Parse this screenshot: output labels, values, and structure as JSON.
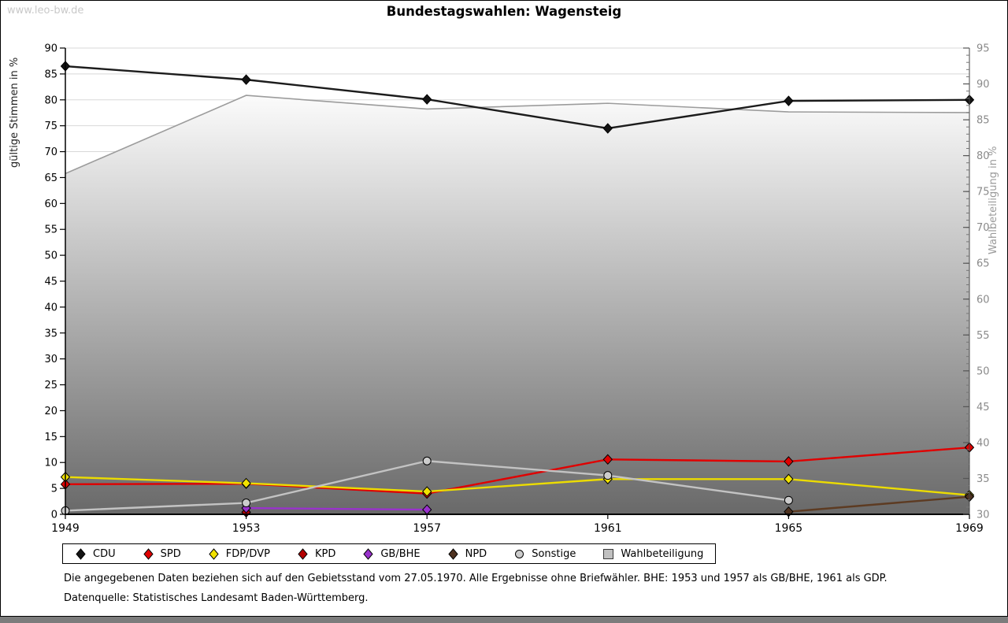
{
  "page": {
    "watermark": "www.leo-bw.de",
    "title": "Bundestagswahlen: Wagensteig",
    "footnote1": "Die angegebenen Daten beziehen sich auf den Gebietsstand vom 27.05.1970. Alle Ergebnisse ohne Briefwähler. BHE: 1953 und 1957 als GB/BHE, 1961 als GDP.",
    "footnote2": "Datenquelle: Statistisches Landesamt Baden-Württemberg."
  },
  "chart_data": {
    "type": "line",
    "title": "Bundestagswahlen: Wagensteig",
    "x_categories": [
      "1949",
      "1953",
      "1957",
      "1961",
      "1965",
      "1969"
    ],
    "left_axis": {
      "label": "gültige Stimmen in %",
      "min": 0,
      "max": 90,
      "tick_step": 5
    },
    "right_axis": {
      "label": "Wahlbeteiligung in %",
      "min": 30,
      "max": 95,
      "tick_step": 5,
      "minor_step": 1
    },
    "grid": true,
    "legend_position": "bottom",
    "series": [
      {
        "name": "CDU",
        "axis": "left",
        "marker": "diamond",
        "color": "#141414",
        "line_color": "#1c1c1c",
        "values": [
          86.5,
          83.9,
          80.1,
          74.5,
          79.8,
          80.0
        ]
      },
      {
        "name": "SPD",
        "axis": "left",
        "marker": "diamond",
        "color": "#e00000",
        "line_color": "#e00000",
        "values": [
          5.8,
          5.9,
          4.0,
          10.6,
          10.2,
          12.9
        ]
      },
      {
        "name": "FDP/DVP",
        "axis": "left",
        "marker": "diamond",
        "color": "#f2e200",
        "line_color": "#ecdc00",
        "values": [
          7.2,
          6.0,
          4.4,
          6.8,
          6.8,
          3.7
        ]
      },
      {
        "name": "KPD",
        "axis": "left",
        "marker": "diamond",
        "color": "#b40000",
        "line_color": "#b40000",
        "values": [
          null,
          0.4,
          null,
          null,
          null,
          null
        ]
      },
      {
        "name": "GB/BHE",
        "axis": "left",
        "marker": "diamond",
        "color": "#9932cc",
        "line_color": "#9932cc",
        "values": [
          null,
          1.2,
          0.9,
          null,
          null,
          null
        ]
      },
      {
        "name": "NPD",
        "axis": "left",
        "marker": "diamond",
        "color": "#4e3220",
        "line_color": "#5d3b22",
        "values": [
          null,
          null,
          null,
          null,
          0.5,
          3.4
        ]
      },
      {
        "name": "Sonstige",
        "axis": "left",
        "marker": "circle",
        "color": "#cccccc",
        "line_color": "#c3c3c3",
        "values": [
          0.7,
          2.2,
          10.3,
          7.5,
          2.7,
          null
        ]
      },
      {
        "name": "Wahlbeteiligung",
        "axis": "right",
        "marker": "none",
        "color": "#c0c0c0",
        "line_color": "#9c9c9c",
        "area": true,
        "values": [
          77.5,
          88.4,
          86.5,
          87.3,
          86.1,
          86.0
        ]
      }
    ]
  }
}
